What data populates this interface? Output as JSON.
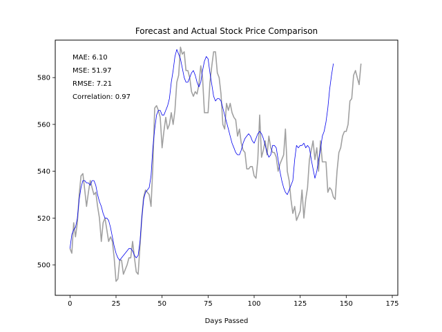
{
  "chart_data": {
    "type": "line",
    "title": "Forecast and Actual Stock Price Comparison",
    "xlabel": "Days Passed",
    "ylabel": "",
    "xlim": [
      -8,
      178
    ],
    "ylim": [
      487,
      596
    ],
    "xticks": [
      0,
      25,
      50,
      75,
      100,
      125,
      150,
      175
    ],
    "yticks": [
      500,
      520,
      540,
      560,
      580
    ],
    "grid": false,
    "metrics": [
      "MAE: 6.10",
      "MSE: 51.97",
      "RMSE: 7.21",
      "Correlation: 0.97"
    ],
    "series": [
      {
        "color": "#a0a0a0",
        "values": [
          [
            0,
            507
          ],
          [
            1,
            505
          ],
          [
            2,
            518
          ],
          [
            3,
            512
          ],
          [
            4,
            518
          ],
          [
            5,
            530
          ],
          [
            6,
            538
          ],
          [
            7,
            539
          ],
          [
            8,
            532
          ],
          [
            9,
            525
          ],
          [
            10,
            531
          ],
          [
            11,
            536
          ],
          [
            12,
            533
          ],
          [
            13,
            530
          ],
          [
            14,
            531
          ],
          [
            15,
            525
          ],
          [
            16,
            520
          ],
          [
            17,
            510
          ],
          [
            18,
            518
          ],
          [
            19,
            520
          ],
          [
            20,
            515
          ],
          [
            21,
            510
          ],
          [
            22,
            512
          ],
          [
            23,
            510
          ],
          [
            24,
            503
          ],
          [
            25,
            493
          ],
          [
            26,
            494
          ],
          [
            27,
            502
          ],
          [
            28,
            502
          ],
          [
            29,
            496
          ],
          [
            30,
            498
          ],
          [
            31,
            500
          ],
          [
            32,
            503
          ],
          [
            33,
            503
          ],
          [
            34,
            510
          ],
          [
            35,
            503
          ],
          [
            36,
            497
          ],
          [
            37,
            496
          ],
          [
            38,
            508
          ],
          [
            39,
            520
          ],
          [
            40,
            529
          ],
          [
            41,
            532
          ],
          [
            42,
            531
          ],
          [
            43,
            530
          ],
          [
            44,
            525
          ],
          [
            45,
            542
          ],
          [
            46,
            567
          ],
          [
            47,
            568
          ],
          [
            48,
            566
          ],
          [
            49,
            563
          ],
          [
            50,
            550
          ],
          [
            51,
            557
          ],
          [
            52,
            563
          ],
          [
            53,
            558
          ],
          [
            54,
            560
          ],
          [
            55,
            565
          ],
          [
            56,
            560
          ],
          [
            57,
            566
          ],
          [
            58,
            578
          ],
          [
            59,
            581
          ],
          [
            60,
            593
          ],
          [
            61,
            590
          ],
          [
            62,
            591
          ],
          [
            63,
            583
          ],
          [
            64,
            583
          ],
          [
            65,
            580
          ],
          [
            66,
            574
          ],
          [
            67,
            572
          ],
          [
            68,
            574
          ],
          [
            69,
            573
          ],
          [
            70,
            577
          ],
          [
            71,
            585
          ],
          [
            72,
            580
          ],
          [
            73,
            565
          ],
          [
            74,
            565
          ],
          [
            75,
            565
          ],
          [
            76,
            578
          ],
          [
            77,
            585
          ],
          [
            78,
            591
          ],
          [
            79,
            591
          ],
          [
            80,
            582
          ],
          [
            81,
            580
          ],
          [
            82,
            573
          ],
          [
            83,
            560
          ],
          [
            84,
            558
          ],
          [
            85,
            569
          ],
          [
            86,
            566
          ],
          [
            87,
            569
          ],
          [
            88,
            565
          ],
          [
            89,
            563
          ],
          [
            90,
            562
          ],
          [
            91,
            555
          ],
          [
            92,
            558
          ],
          [
            93,
            552
          ],
          [
            94,
            549
          ],
          [
            95,
            548
          ],
          [
            96,
            541
          ],
          [
            97,
            541
          ],
          [
            98,
            542
          ],
          [
            99,
            542
          ],
          [
            100,
            538
          ],
          [
            101,
            537
          ],
          [
            102,
            545
          ],
          [
            103,
            564
          ],
          [
            104,
            546
          ],
          [
            105,
            549
          ],
          [
            106,
            553
          ],
          [
            107,
            547
          ],
          [
            108,
            555
          ],
          [
            109,
            550
          ],
          [
            110,
            548
          ],
          [
            111,
            548
          ],
          [
            112,
            546
          ],
          [
            113,
            540
          ],
          [
            114,
            543
          ],
          [
            115,
            545
          ],
          [
            116,
            547
          ],
          [
            117,
            558
          ],
          [
            118,
            540
          ],
          [
            119,
            536
          ],
          [
            120,
            528
          ],
          [
            121,
            522
          ],
          [
            122,
            525
          ],
          [
            123,
            519
          ],
          [
            124,
            521
          ],
          [
            125,
            523
          ],
          [
            126,
            532
          ],
          [
            127,
            520
          ],
          [
            128,
            528
          ],
          [
            129,
            533
          ],
          [
            130,
            545
          ],
          [
            131,
            549
          ],
          [
            132,
            553
          ],
          [
            133,
            545
          ],
          [
            134,
            550
          ],
          [
            135,
            540
          ],
          [
            136,
            553
          ],
          [
            137,
            544
          ],
          [
            138,
            544
          ],
          [
            139,
            544
          ],
          [
            140,
            531
          ],
          [
            141,
            533
          ],
          [
            142,
            532
          ],
          [
            143,
            529
          ],
          [
            144,
            528
          ],
          [
            145,
            540
          ],
          [
            146,
            548
          ],
          [
            147,
            550
          ],
          [
            148,
            555
          ],
          [
            149,
            557
          ],
          [
            150,
            557
          ],
          [
            151,
            560
          ],
          [
            152,
            570
          ],
          [
            153,
            571
          ],
          [
            154,
            581
          ],
          [
            155,
            583
          ],
          [
            156,
            580
          ],
          [
            157,
            577
          ],
          [
            158,
            586
          ]
        ]
      },
      {
        "color": "#0000ee",
        "values": [
          [
            0,
            507
          ],
          [
            1,
            513
          ],
          [
            2,
            515
          ],
          [
            3,
            516
          ],
          [
            4,
            520
          ],
          [
            5,
            528
          ],
          [
            6,
            533
          ],
          [
            7,
            536
          ],
          [
            8,
            536
          ],
          [
            9,
            535
          ],
          [
            10,
            535
          ],
          [
            11,
            534
          ],
          [
            12,
            536
          ],
          [
            13,
            536
          ],
          [
            14,
            534
          ],
          [
            15,
            530
          ],
          [
            16,
            527
          ],
          [
            17,
            525
          ],
          [
            18,
            522
          ],
          [
            19,
            520
          ],
          [
            20,
            520
          ],
          [
            21,
            519
          ],
          [
            22,
            516
          ],
          [
            23,
            512
          ],
          [
            24,
            508
          ],
          [
            25,
            505
          ],
          [
            26,
            503
          ],
          [
            27,
            502
          ],
          [
            28,
            503
          ],
          [
            29,
            504
          ],
          [
            30,
            505
          ],
          [
            31,
            506
          ],
          [
            32,
            507
          ],
          [
            33,
            507
          ],
          [
            34,
            506
          ],
          [
            35,
            504
          ],
          [
            36,
            503
          ],
          [
            37,
            504
          ],
          [
            38,
            510
          ],
          [
            39,
            520
          ],
          [
            40,
            528
          ],
          [
            41,
            531
          ],
          [
            42,
            532
          ],
          [
            43,
            533
          ],
          [
            44,
            538
          ],
          [
            45,
            550
          ],
          [
            46,
            558
          ],
          [
            47,
            564
          ],
          [
            48,
            566
          ],
          [
            49,
            566
          ],
          [
            50,
            564
          ],
          [
            51,
            564
          ],
          [
            52,
            566
          ],
          [
            53,
            568
          ],
          [
            54,
            571
          ],
          [
            55,
            578
          ],
          [
            56,
            583
          ],
          [
            57,
            589
          ],
          [
            58,
            592
          ],
          [
            59,
            590
          ],
          [
            60,
            588
          ],
          [
            61,
            584
          ],
          [
            62,
            580
          ],
          [
            63,
            578
          ],
          [
            64,
            578
          ],
          [
            65,
            580
          ],
          [
            66,
            582
          ],
          [
            67,
            583
          ],
          [
            68,
            581
          ],
          [
            69,
            578
          ],
          [
            70,
            576
          ],
          [
            71,
            578
          ],
          [
            72,
            583
          ],
          [
            73,
            587
          ],
          [
            74,
            589
          ],
          [
            75,
            588
          ],
          [
            76,
            582
          ],
          [
            77,
            577
          ],
          [
            78,
            572
          ],
          [
            79,
            570
          ],
          [
            80,
            571
          ],
          [
            81,
            571
          ],
          [
            82,
            570
          ],
          [
            83,
            567
          ],
          [
            84,
            564
          ],
          [
            85,
            561
          ],
          [
            86,
            558
          ],
          [
            87,
            555
          ],
          [
            88,
            552
          ],
          [
            89,
            550
          ],
          [
            90,
            548
          ],
          [
            91,
            547
          ],
          [
            92,
            547
          ],
          [
            93,
            549
          ],
          [
            94,
            552
          ],
          [
            95,
            554
          ],
          [
            96,
            555
          ],
          [
            97,
            556
          ],
          [
            98,
            555
          ],
          [
            99,
            553
          ],
          [
            100,
            552
          ],
          [
            101,
            554
          ],
          [
            102,
            556
          ],
          [
            103,
            557
          ],
          [
            104,
            556
          ],
          [
            105,
            554
          ],
          [
            106,
            551
          ],
          [
            107,
            548
          ],
          [
            108,
            546
          ],
          [
            109,
            547
          ],
          [
            110,
            551
          ],
          [
            111,
            551
          ],
          [
            112,
            550
          ],
          [
            113,
            545
          ],
          [
            114,
            540
          ],
          [
            115,
            536
          ],
          [
            116,
            533
          ],
          [
            117,
            531
          ],
          [
            118,
            530
          ],
          [
            119,
            532
          ],
          [
            120,
            534
          ],
          [
            121,
            536
          ],
          [
            122,
            545
          ],
          [
            123,
            551
          ],
          [
            124,
            550
          ],
          [
            125,
            551
          ],
          [
            126,
            551
          ],
          [
            127,
            552
          ],
          [
            128,
            550
          ],
          [
            129,
            551
          ],
          [
            130,
            550
          ],
          [
            131,
            545
          ],
          [
            132,
            541
          ],
          [
            133,
            537
          ],
          [
            134,
            540
          ],
          [
            135,
            545
          ],
          [
            136,
            549
          ],
          [
            137,
            555
          ],
          [
            138,
            557
          ],
          [
            139,
            561
          ],
          [
            140,
            567
          ],
          [
            141,
            575
          ],
          [
            142,
            581
          ],
          [
            143,
            586
          ]
        ]
      }
    ]
  }
}
